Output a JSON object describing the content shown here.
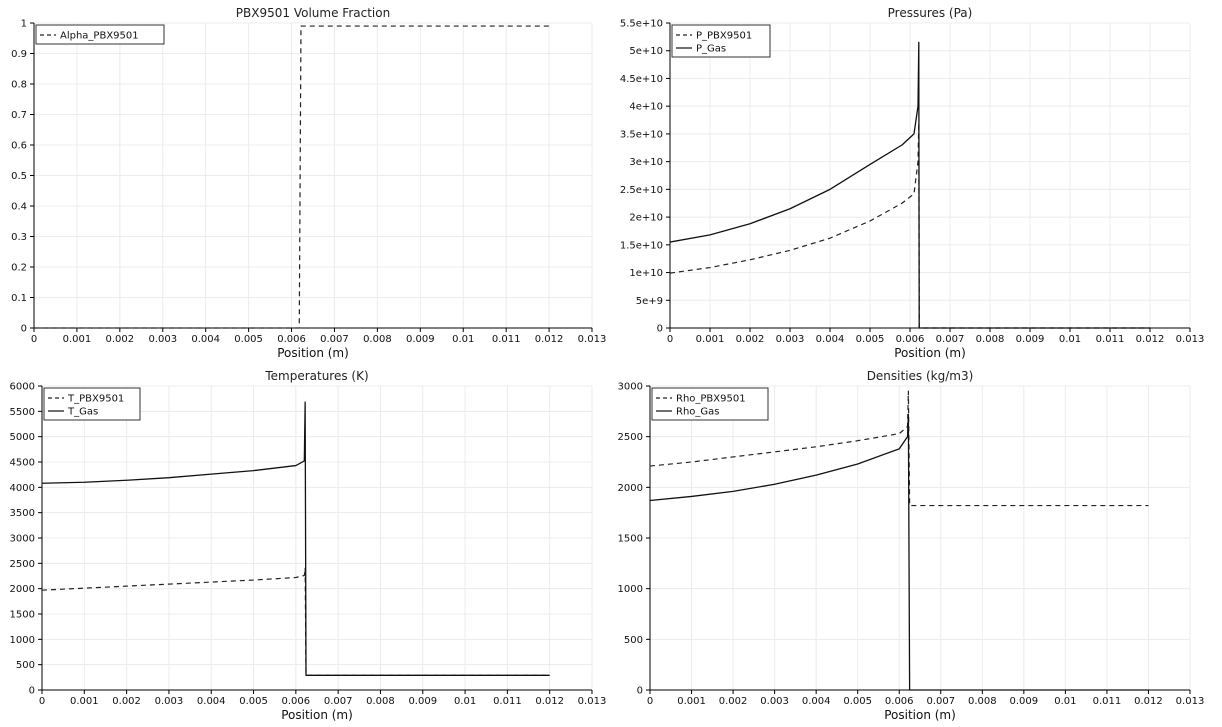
{
  "chart_data": [
    {
      "type": "line",
      "title": "PBX9501 Volume Fraction",
      "xlabel": "Position (m)",
      "ylabel": "",
      "xlim": [
        0,
        0.013
      ],
      "ylim": [
        0,
        1
      ],
      "x_ticks": [
        0,
        0.001,
        0.002,
        0.003,
        0.004,
        0.005,
        0.006,
        0.007,
        0.008,
        0.009,
        0.01,
        0.011,
        0.012,
        0.013
      ],
      "x_tick_labels": [
        "0",
        "0.001",
        "0.002",
        "0.003",
        "0.004",
        "0.005",
        "0.006",
        "0.007",
        "0.008",
        "0.009",
        "0.01",
        "0.011",
        "0.012",
        "0.013"
      ],
      "y_ticks": [
        0,
        0.1,
        0.2,
        0.3,
        0.4,
        0.5,
        0.6,
        0.7,
        0.8,
        0.9,
        1
      ],
      "y_tick_labels": [
        "0",
        "0.1",
        "0.2",
        "0.3",
        "0.4",
        "0.5",
        "0.6",
        "0.7",
        "0.8",
        "0.9",
        "1"
      ],
      "grid": true,
      "legend_position": "top-left",
      "series": [
        {
          "name": "Alpha_PBX9501",
          "style": "dashed",
          "color": "#222222",
          "points": [
            [
              0,
              0.0
            ],
            [
              0.00618,
              0.0
            ],
            [
              0.00622,
              0.99
            ],
            [
              0.012,
              0.99
            ]
          ]
        }
      ]
    },
    {
      "type": "line",
      "title": "Pressures (Pa)",
      "xlabel": "Position (m)",
      "ylabel": "",
      "xlim": [
        0,
        0.013
      ],
      "ylim": [
        0,
        55000000000
      ],
      "x_ticks": [
        0,
        0.001,
        0.002,
        0.003,
        0.004,
        0.005,
        0.006,
        0.007,
        0.008,
        0.009,
        0.01,
        0.011,
        0.012,
        0.013
      ],
      "x_tick_labels": [
        "0",
        "0.001",
        "0.002",
        "0.003",
        "0.004",
        "0.005",
        "0.006",
        "0.007",
        "0.008",
        "0.009",
        "0.01",
        "0.011",
        "0.012",
        "0.013"
      ],
      "y_ticks": [
        0,
        5000000000,
        10000000000,
        15000000000,
        20000000000,
        25000000000,
        30000000000,
        35000000000,
        40000000000,
        45000000000,
        50000000000,
        55000000000
      ],
      "y_tick_labels": [
        "0",
        "5e+9",
        "1e+10",
        "1.5e+10",
        "2e+10",
        "2.5e+10",
        "3e+10",
        "3.5e+10",
        "4e+10",
        "4.5e+10",
        "5e+10",
        "5.5e+10"
      ],
      "grid": true,
      "legend_position": "top-left",
      "series": [
        {
          "name": "P_PBX9501",
          "style": "dashed",
          "color": "#222222",
          "points": [
            [
              0,
              9900000000
            ],
            [
              0.001,
              10900000000
            ],
            [
              0.002,
              12300000000
            ],
            [
              0.003,
              14000000000
            ],
            [
              0.004,
              16200000000
            ],
            [
              0.005,
              19300000000
            ],
            [
              0.0058,
              22500000000
            ],
            [
              0.0061,
              24200000000
            ],
            [
              0.0062,
              30000000000
            ],
            [
              0.00622,
              37000000000
            ],
            [
              0.00623,
              0
            ],
            [
              0.012,
              0
            ]
          ]
        },
        {
          "name": "P_Gas",
          "style": "solid",
          "color": "#111111",
          "points": [
            [
              0,
              15500000000
            ],
            [
              0.001,
              16800000000
            ],
            [
              0.002,
              18800000000
            ],
            [
              0.003,
              21500000000
            ],
            [
              0.004,
              25000000000
            ],
            [
              0.005,
              29500000000
            ],
            [
              0.0058,
              33000000000
            ],
            [
              0.0061,
              35000000000
            ],
            [
              0.0062,
              40000000000
            ],
            [
              0.00622,
              51500000000
            ],
            [
              0.00623,
              0
            ],
            [
              0.012,
              0
            ]
          ]
        }
      ]
    },
    {
      "type": "line",
      "title": "Temperatures (K)",
      "xlabel": "Position (m)",
      "ylabel": "",
      "xlim": [
        0,
        0.013
      ],
      "ylim": [
        0,
        6000
      ],
      "x_ticks": [
        0,
        0.001,
        0.002,
        0.003,
        0.004,
        0.005,
        0.006,
        0.007,
        0.008,
        0.009,
        0.01,
        0.011,
        0.012,
        0.013
      ],
      "x_tick_labels": [
        "0",
        "0.001",
        "0.002",
        "0.003",
        "0.004",
        "0.005",
        "0.006",
        "0.007",
        "0.008",
        "0.009",
        "0.01",
        "0.011",
        "0.012",
        "0.013"
      ],
      "y_ticks": [
        0,
        500,
        1000,
        1500,
        2000,
        2500,
        3000,
        3500,
        4000,
        4500,
        5000,
        5500,
        6000
      ],
      "y_tick_labels": [
        "0",
        "500",
        "1000",
        "1500",
        "2000",
        "2500",
        "3000",
        "3500",
        "4000",
        "4500",
        "5000",
        "5500",
        "6000"
      ],
      "grid": true,
      "legend_position": "top-left",
      "series": [
        {
          "name": "T_PBX9501",
          "style": "dashed",
          "color": "#222222",
          "points": [
            [
              0,
              1970
            ],
            [
              0.001,
              2010
            ],
            [
              0.002,
              2050
            ],
            [
              0.003,
              2090
            ],
            [
              0.004,
              2130
            ],
            [
              0.005,
              2170
            ],
            [
              0.006,
              2220
            ],
            [
              0.0062,
              2260
            ],
            [
              0.00622,
              2400
            ],
            [
              0.00624,
              290
            ],
            [
              0.012,
              290
            ]
          ]
        },
        {
          "name": "T_Gas",
          "style": "solid",
          "color": "#111111",
          "points": [
            [
              0,
              4080
            ],
            [
              0.001,
              4100
            ],
            [
              0.002,
              4140
            ],
            [
              0.003,
              4190
            ],
            [
              0.004,
              4260
            ],
            [
              0.005,
              4330
            ],
            [
              0.006,
              4430
            ],
            [
              0.0062,
              4520
            ],
            [
              0.00622,
              5680
            ],
            [
              0.00624,
              290
            ],
            [
              0.012,
              290
            ]
          ]
        }
      ]
    },
    {
      "type": "line",
      "title": "Densities (kg/m3)",
      "xlabel": "Position (m)",
      "ylabel": "",
      "xlim": [
        0,
        0.013
      ],
      "ylim": [
        0,
        3000
      ],
      "x_ticks": [
        0,
        0.001,
        0.002,
        0.003,
        0.004,
        0.005,
        0.006,
        0.007,
        0.008,
        0.009,
        0.01,
        0.011,
        0.012,
        0.013
      ],
      "x_tick_labels": [
        "0",
        "0.001",
        "0.002",
        "0.003",
        "0.004",
        "0.005",
        "0.006",
        "0.007",
        "0.008",
        "0.009",
        "0.01",
        "0.011",
        "0.012",
        "0.013"
      ],
      "y_ticks": [
        0,
        500,
        1000,
        1500,
        2000,
        2500,
        3000
      ],
      "y_tick_labels": [
        "0",
        "500",
        "1000",
        "1500",
        "2000",
        "2500",
        "3000"
      ],
      "grid": true,
      "legend_position": "top-left",
      "series": [
        {
          "name": "Rho_PBX9501",
          "style": "dashed",
          "color": "#222222",
          "points": [
            [
              0,
              2210
            ],
            [
              0.001,
              2250
            ],
            [
              0.002,
              2300
            ],
            [
              0.003,
              2350
            ],
            [
              0.004,
              2400
            ],
            [
              0.005,
              2460
            ],
            [
              0.006,
              2530
            ],
            [
              0.0062,
              2600
            ],
            [
              0.00622,
              2950
            ],
            [
              0.00625,
              1820
            ],
            [
              0.012,
              1820
            ]
          ]
        },
        {
          "name": "Rho_Gas",
          "style": "solid",
          "color": "#111111",
          "points": [
            [
              0,
              1870
            ],
            [
              0.001,
              1910
            ],
            [
              0.002,
              1960
            ],
            [
              0.003,
              2030
            ],
            [
              0.004,
              2120
            ],
            [
              0.005,
              2230
            ],
            [
              0.006,
              2380
            ],
            [
              0.0062,
              2500
            ],
            [
              0.00622,
              2720
            ],
            [
              0.00625,
              0
            ],
            [
              0.012,
              0
            ]
          ]
        }
      ]
    }
  ]
}
